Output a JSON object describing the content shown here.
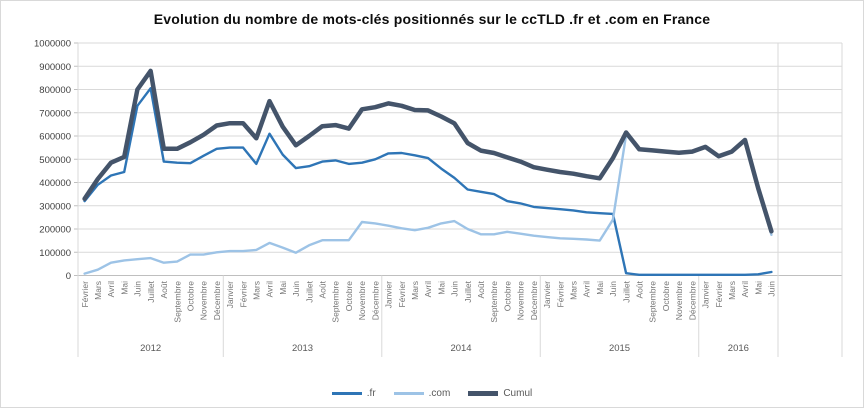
{
  "chart_data": {
    "type": "line",
    "title": "Evolution du nombre de mots-clés positionnés sur le ccTLD .fr et .com en France",
    "legend_position": "bottom",
    "grid": "horizontal",
    "ylim": [
      0,
      1000000
    ],
    "y_tick_labels_top_down": [
      "1000000",
      "900000",
      "800000",
      "700000",
      "600000",
      "500000",
      "400000",
      "300000",
      "200000",
      "100000",
      "0"
    ],
    "y_tick_values_top_down": [
      1000000,
      900000,
      800000,
      700000,
      600000,
      500000,
      400000,
      300000,
      200000,
      100000,
      0
    ],
    "years": [
      {
        "label": "2012",
        "months": 11
      },
      {
        "label": "2013",
        "months": 12
      },
      {
        "label": "2014",
        "months": 12
      },
      {
        "label": "2015",
        "months": 12
      },
      {
        "label": "2016",
        "months": 6
      }
    ],
    "categories": [
      "Février",
      "Mars",
      "Avril",
      "Mai",
      "Juin",
      "Juillet",
      "Août",
      "Septembre",
      "Octobre",
      "Novembre",
      "Décembre",
      "Janvier",
      "Février",
      "Mars",
      "Avril",
      "Mai",
      "Juin",
      "Juillet",
      "Août",
      "Septembre",
      "Octobre",
      "Novembre",
      "Décembre",
      "Janvier",
      "Février",
      "Mars",
      "Avril",
      "Mai",
      "Juin",
      "Juillet",
      "Août",
      "Septembre",
      "Octobre",
      "Novembre",
      "Décembre",
      "Janvier",
      "Février",
      "Mars",
      "Avril",
      "Mai",
      "Juin",
      "Juillet",
      "Août",
      "Septembre",
      "Octobre",
      "Novembre",
      "Décembre",
      "Janvier",
      "Février",
      "Mars",
      "Avril",
      "Mai",
      "Juin"
    ],
    "series": [
      {
        "name": ".fr",
        "color": "#2e75b6",
        "stroke_width": 2.4,
        "values": [
          320000,
          390000,
          430000,
          445000,
          730000,
          805000,
          490000,
          485000,
          483000,
          515000,
          545000,
          550000,
          550000,
          480000,
          610000,
          520000,
          462000,
          470000,
          490000,
          495000,
          480000,
          485000,
          500000,
          525000,
          527000,
          517000,
          505000,
          460000,
          420000,
          370000,
          360000,
          350000,
          320000,
          310000,
          295000,
          290000,
          285000,
          280000,
          272000,
          268000,
          265000,
          10000,
          3000,
          3000,
          3000,
          3000,
          3000,
          3000,
          3000,
          3000,
          3000,
          5000,
          15000
        ]
      },
      {
        "name": ".com",
        "color": "#9dc3e6",
        "stroke_width": 2.4,
        "values": [
          8000,
          25000,
          55000,
          65000,
          70000,
          75000,
          55000,
          60000,
          90000,
          90000,
          100000,
          105000,
          105000,
          110000,
          140000,
          120000,
          98000,
          130000,
          152000,
          152000,
          152000,
          230000,
          224000,
          214000,
          203000,
          195000,
          205000,
          224000,
          234000,
          200000,
          177000,
          177000,
          188000,
          180000,
          171000,
          165000,
          160000,
          158000,
          155000,
          150000,
          240000,
          605000,
          540000,
          535000,
          530000,
          525000,
          530000,
          550000,
          510000,
          530000,
          580000,
          370000,
          175000
        ]
      },
      {
        "name": "Cumul",
        "color": "#44546a",
        "stroke_width": 4.5,
        "values": [
          330000,
          415000,
          485000,
          510000,
          800000,
          880000,
          545000,
          545000,
          573000,
          605000,
          645000,
          655000,
          655000,
          590000,
          750000,
          640000,
          560000,
          600000,
          642000,
          647000,
          632000,
          715000,
          724000,
          740000,
          730000,
          712000,
          710000,
          684000,
          654000,
          570000,
          537000,
          527000,
          508000,
          490000,
          466000,
          455000,
          445000,
          438000,
          427000,
          418000,
          505000,
          615000,
          543000,
          538000,
          533000,
          528000,
          533000,
          553000,
          513000,
          533000,
          583000,
          375000,
          190000
        ]
      }
    ],
    "colors": {
      "gridline": "#d9d9d9",
      "axis_line": "#bfbfbf",
      "separator": "#d9d9d9",
      "month_label": "#757575",
      "year_label": "#595959",
      "y_label": "#404040"
    }
  }
}
